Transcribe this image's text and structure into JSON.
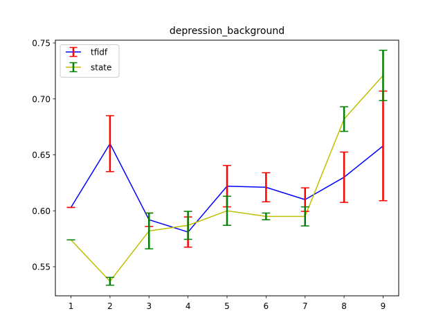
{
  "chart_data": {
    "type": "line",
    "title": "depression_background",
    "xlabel": "",
    "ylabel": "",
    "x": [
      1,
      2,
      3,
      4,
      5,
      6,
      7,
      8,
      9
    ],
    "xlim": [
      0.6,
      9.4
    ],
    "ylim": [
      0.524,
      0.7525
    ],
    "xticks": [
      1,
      2,
      3,
      4,
      5,
      6,
      7,
      8,
      9
    ],
    "xtick_labels": [
      "1",
      "2",
      "3",
      "4",
      "5",
      "6",
      "7",
      "8",
      "9"
    ],
    "yticks": [
      0.55,
      0.6,
      0.65,
      0.7,
      0.75
    ],
    "ytick_labels": [
      "0.55",
      "0.60",
      "0.65",
      "0.70",
      "0.75"
    ],
    "grid": false,
    "legend": "upper-left",
    "series": [
      {
        "name": "tfidf",
        "line_color": "#0000ff",
        "error_color": "#ff0000",
        "values": [
          0.603,
          0.66,
          0.592,
          0.581,
          0.622,
          0.621,
          0.61,
          0.63,
          0.658
        ],
        "errors": [
          0.0,
          0.025,
          0.006,
          0.0135,
          0.0185,
          0.013,
          0.0105,
          0.0225,
          0.049
        ]
      },
      {
        "name": "state",
        "line_color": "#bfbf00",
        "error_color": "#008000",
        "values": [
          0.574,
          0.537,
          0.582,
          0.587,
          0.6,
          0.595,
          0.595,
          0.682,
          0.721
        ],
        "errors": [
          0.0,
          0.0035,
          0.016,
          0.0125,
          0.013,
          0.003,
          0.0085,
          0.011,
          0.0225
        ]
      }
    ]
  }
}
